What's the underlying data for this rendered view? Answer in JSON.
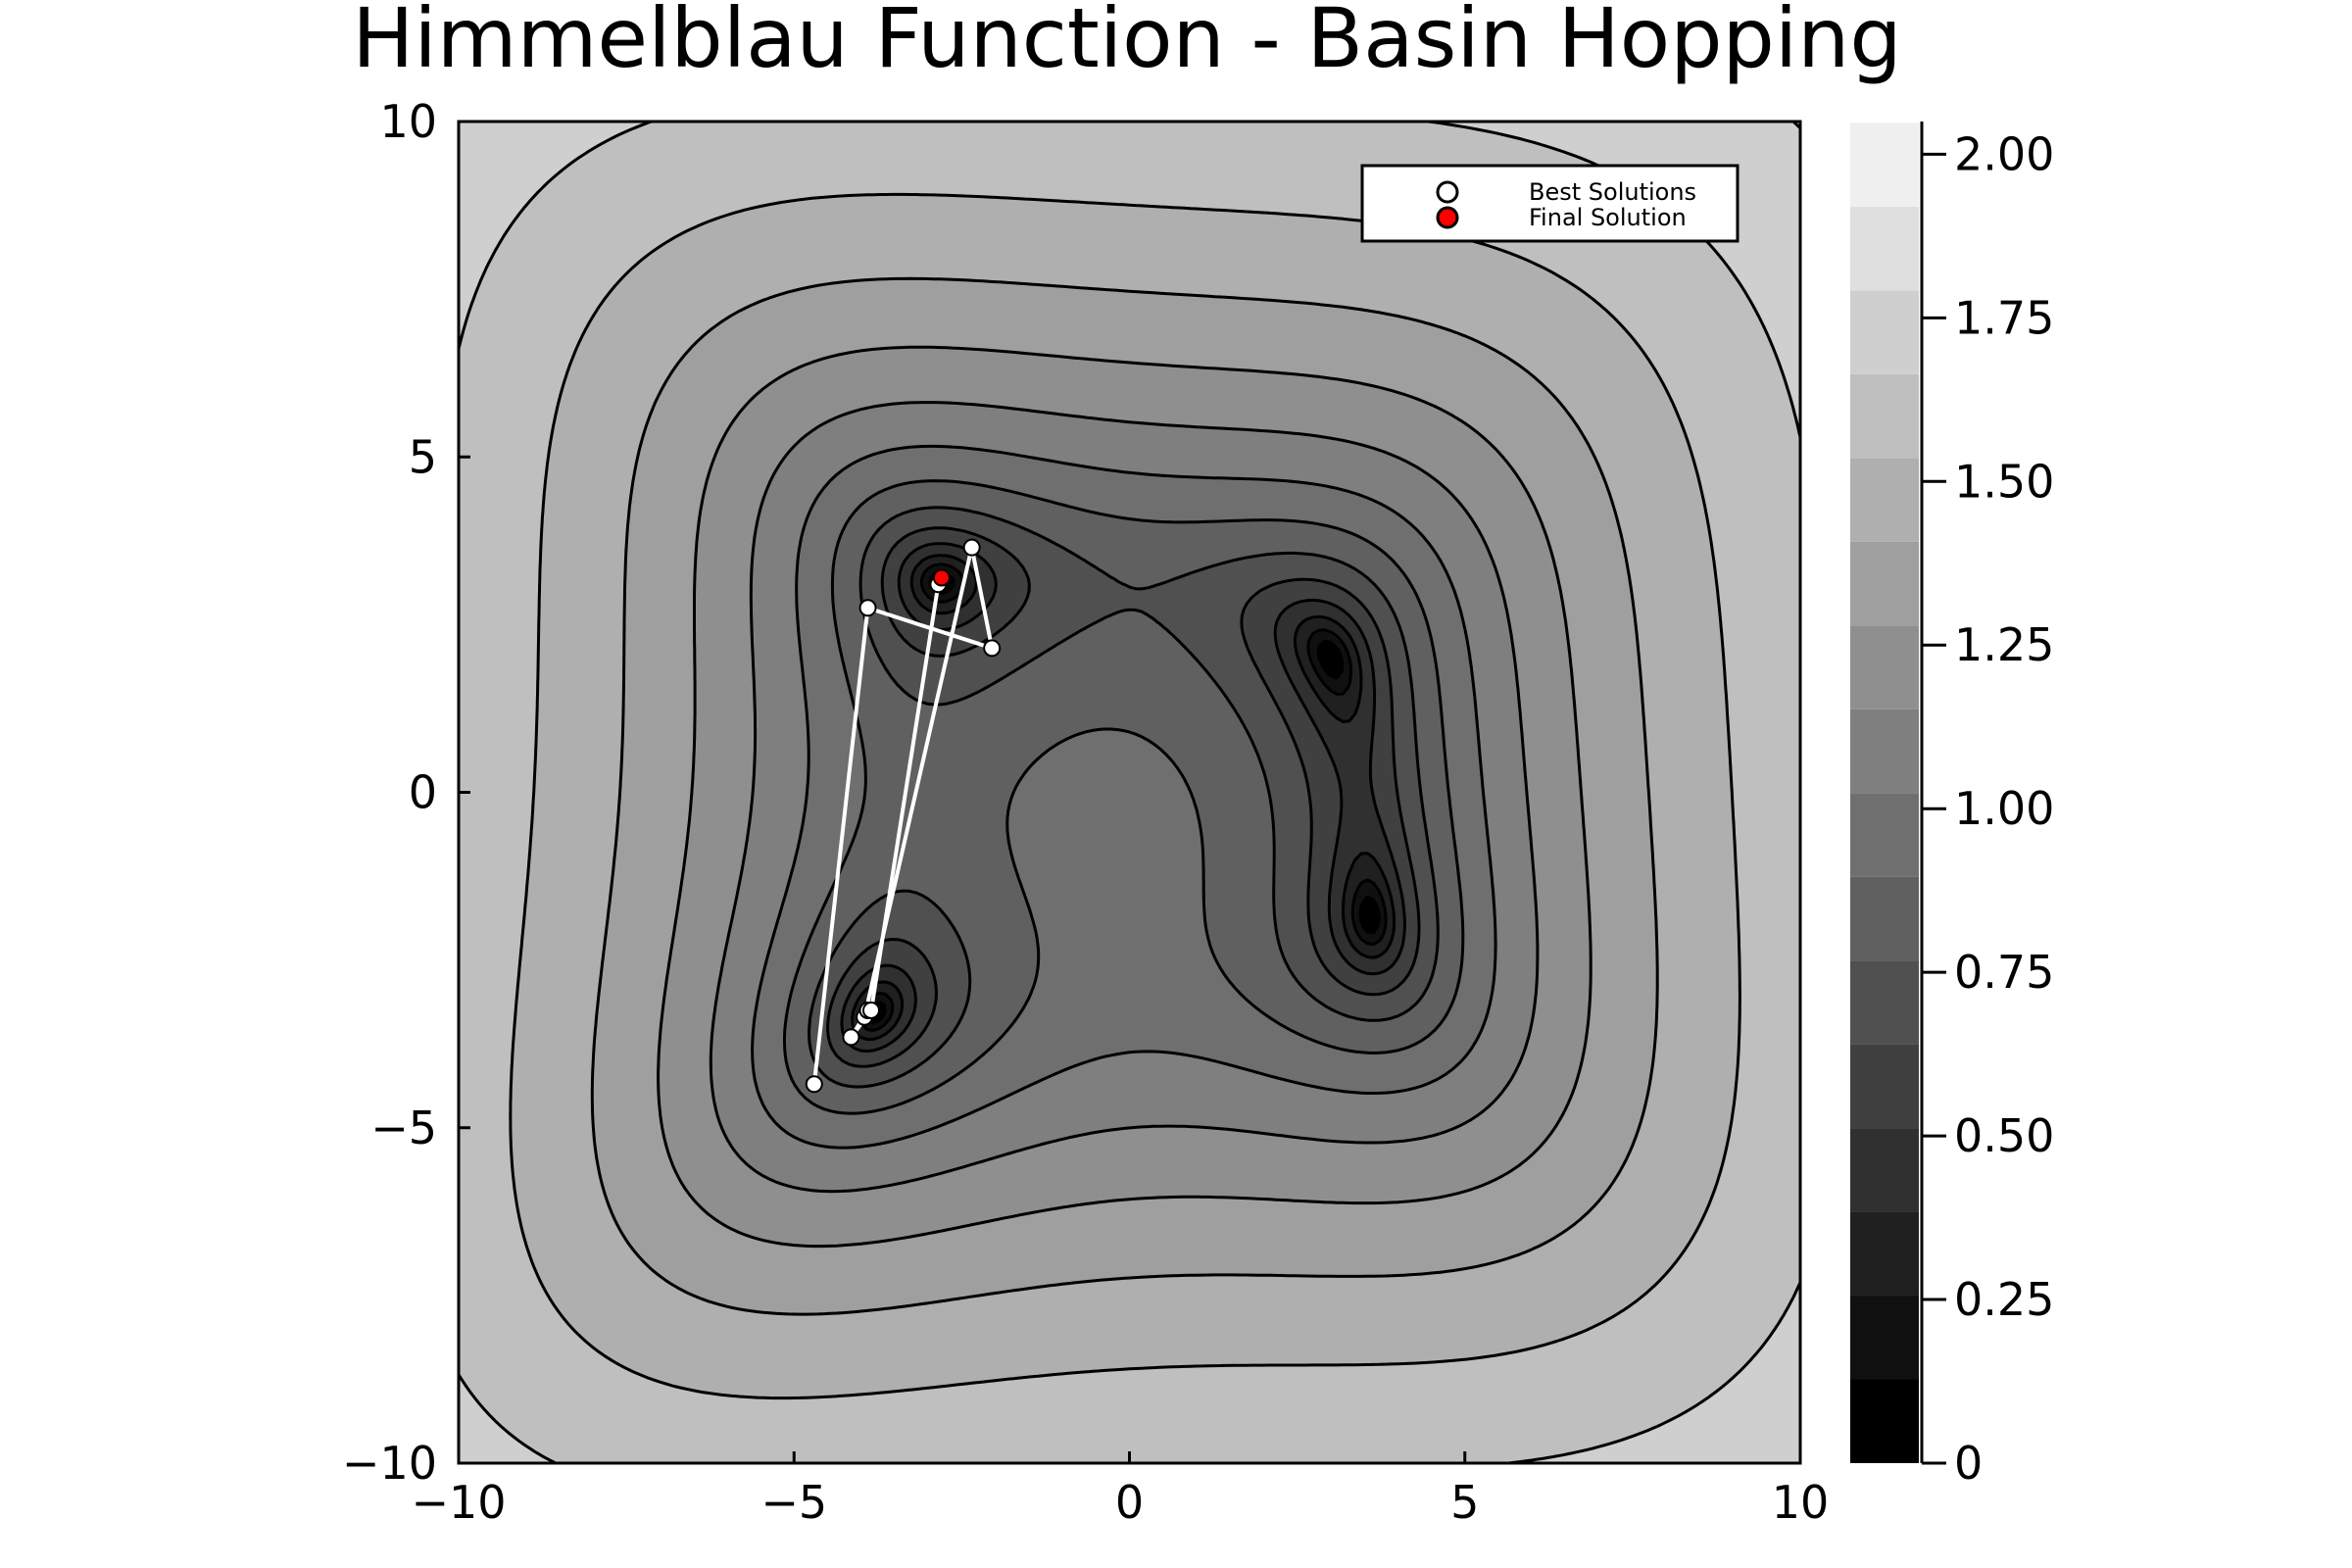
{
  "chart_data": {
    "type": "contour",
    "title": "Himmelblau Function - Basin Hopping",
    "xlabel": "",
    "ylabel": "",
    "xlim": [
      -10,
      10
    ],
    "ylim": [
      -10,
      10
    ],
    "x_ticks": [
      {
        "value": -10,
        "label": "−10"
      },
      {
        "value": -5,
        "label": "−5"
      },
      {
        "value": 0,
        "label": "0"
      },
      {
        "value": 5,
        "label": "5"
      },
      {
        "value": 10,
        "label": "10"
      }
    ],
    "y_ticks": [
      {
        "value": -10,
        "label": "−10"
      },
      {
        "value": -5,
        "label": "−5"
      },
      {
        "value": 0,
        "label": "0"
      },
      {
        "value": 5,
        "label": "5"
      },
      {
        "value": 10,
        "label": "10"
      }
    ],
    "colorbar": {
      "lim": [
        0,
        2.05
      ],
      "levels": [
        0,
        0.128,
        0.256,
        0.384,
        0.512,
        0.64,
        0.768,
        0.896,
        1.024,
        1.152,
        1.28,
        1.408,
        1.536,
        1.664,
        1.792,
        1.92
      ],
      "ticks": [
        {
          "value": 0,
          "label": "0"
        },
        {
          "value": 0.25,
          "label": "0.25"
        },
        {
          "value": 0.5,
          "label": "0.50"
        },
        {
          "value": 0.75,
          "label": "0.75"
        },
        {
          "value": 1.0,
          "label": "1.00"
        },
        {
          "value": 1.25,
          "label": "1.25"
        },
        {
          "value": 1.5,
          "label": "1.50"
        },
        {
          "value": 1.75,
          "label": "1.75"
        },
        {
          "value": 2.0,
          "label": "2.00"
        }
      ],
      "colormap": "grayscale"
    },
    "legend": {
      "position": "top-right",
      "entries": [
        {
          "label": "Best Solutions",
          "marker_fill": "#ffffff"
        },
        {
          "label": "Final Solution",
          "marker_fill": "#ff0000"
        }
      ]
    },
    "series": [
      {
        "name": "Best Solutions",
        "type": "line+scatter",
        "color": "#ffffff",
        "points": [
          {
            "x": -4.7,
            "y": -4.35
          },
          {
            "x": -3.9,
            "y": 2.75
          },
          {
            "x": -2.05,
            "y": 2.15
          },
          {
            "x": -2.35,
            "y": 3.65
          },
          {
            "x": -3.95,
            "y": -3.35
          },
          {
            "x": -3.9,
            "y": -3.25
          },
          {
            "x": -4.15,
            "y": -3.65
          },
          {
            "x": -3.85,
            "y": -3.25
          },
          {
            "x": -2.85,
            "y": 3.1
          }
        ]
      },
      {
        "name": "Final Solution",
        "type": "scatter",
        "color": "#ff0000",
        "points": [
          {
            "x": -2.8,
            "y": 3.2
          }
        ]
      }
    ]
  }
}
